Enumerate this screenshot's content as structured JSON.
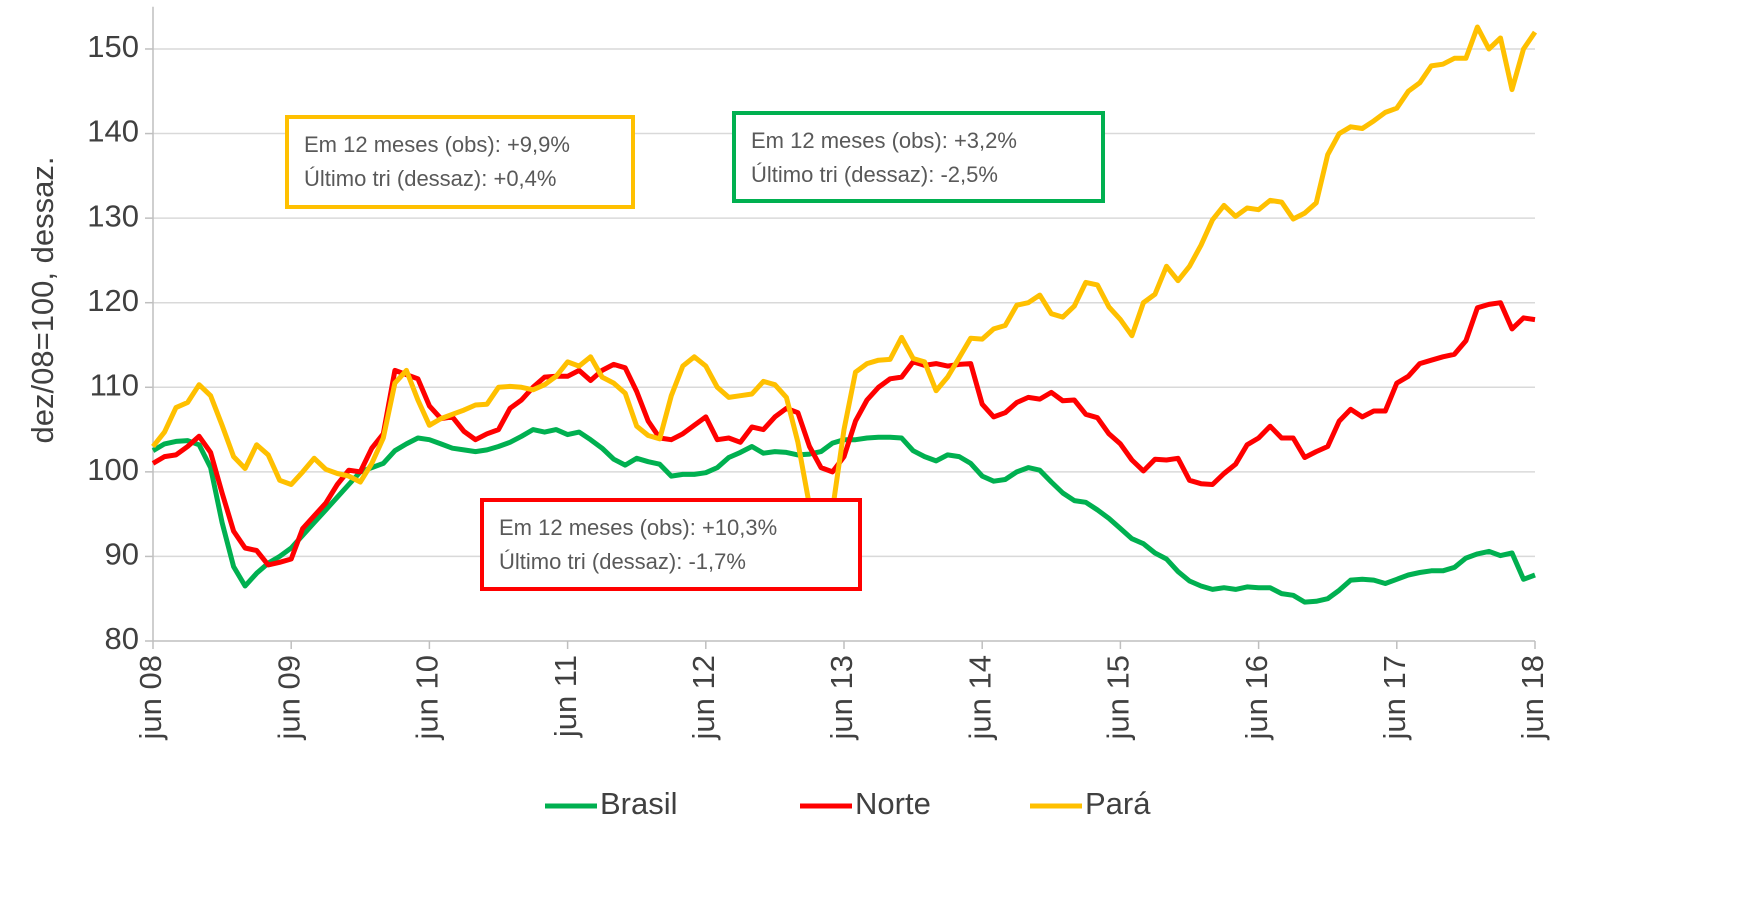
{
  "chart_data": {
    "type": "line",
    "y_label": "dez/08=100, dessaz.",
    "categories": [
      "jun 08",
      null,
      null,
      null,
      null,
      null,
      null,
      null,
      null,
      null,
      null,
      null,
      "jun 09",
      null,
      null,
      null,
      null,
      null,
      null,
      null,
      null,
      null,
      null,
      null,
      "jun 10",
      null,
      null,
      null,
      null,
      null,
      null,
      null,
      null,
      null,
      null,
      null,
      "jun 11",
      null,
      null,
      null,
      null,
      null,
      null,
      null,
      null,
      null,
      null,
      null,
      "jun 12",
      null,
      null,
      null,
      null,
      null,
      null,
      null,
      null,
      null,
      null,
      null,
      "jun 13",
      null,
      null,
      null,
      null,
      null,
      null,
      null,
      null,
      null,
      null,
      null,
      "jun 14",
      null,
      null,
      null,
      null,
      null,
      null,
      null,
      null,
      null,
      null,
      null,
      "jun 15",
      null,
      null,
      null,
      null,
      null,
      null,
      null,
      null,
      null,
      null,
      null,
      "jun 16",
      null,
      null,
      null,
      null,
      null,
      null,
      null,
      null,
      null,
      null,
      null,
      "jun 17",
      null,
      null,
      null,
      null,
      null,
      null,
      null,
      null,
      null,
      null,
      null,
      "jun 18"
    ],
    "series": [
      {
        "name": "Brasil",
        "color": "#00b050",
        "values": [
          102.5,
          103.3,
          103.6,
          103.7,
          103.2,
          100.5,
          94,
          88.8,
          86.5,
          88,
          89.2,
          90,
          91,
          92.5,
          94,
          95.5,
          97,
          98.5,
          100,
          100.5,
          101,
          102.5,
          103.3,
          104,
          103.8,
          103.3,
          102.8,
          102.6,
          102.4,
          102.6,
          103,
          103.5,
          104.2,
          105,
          104.7,
          105,
          104.4,
          104.7,
          103.8,
          102.8,
          101.5,
          100.8,
          101.6,
          101.2,
          100.9,
          99.5,
          99.7,
          99.7,
          99.9,
          100.5,
          101.7,
          102.3,
          103,
          102.2,
          102.4,
          102.3,
          102,
          102.1,
          102.4,
          103.4,
          103.8,
          103.8,
          104,
          104.1,
          104.1,
          104,
          102.5,
          101.8,
          101.3,
          102,
          101.8,
          101,
          99.5,
          98.9,
          99.1,
          100,
          100.5,
          100.2,
          98.8,
          97.5,
          96.6,
          96.4,
          95.5,
          94.5,
          93.3,
          92.1,
          91.5,
          90.4,
          89.7,
          88.2,
          87.1,
          86.5,
          86.1,
          86.3,
          86.1,
          86.4,
          86.3,
          86.3,
          85.6,
          85.4,
          84.6,
          84.7,
          85,
          86,
          87.2,
          87.3,
          87.2,
          86.8,
          87.3,
          87.8,
          88.1,
          88.3,
          88.3,
          88.7,
          89.8,
          90.3,
          90.6,
          90.1,
          90.4,
          87.3,
          87.8
        ]
      },
      {
        "name": "Norte",
        "color": "#ff0000",
        "values": [
          101,
          101.8,
          102,
          103,
          104.2,
          102.3,
          97.5,
          93,
          91,
          90.7,
          89,
          89.3,
          89.7,
          93.3,
          94.8,
          96.3,
          98.5,
          100.2,
          100,
          102.8,
          104.5,
          112,
          111.5,
          111,
          107.8,
          106.3,
          106.5,
          104.8,
          103.8,
          104.5,
          105,
          107.5,
          108.5,
          110,
          111.2,
          111.3,
          111.3,
          112,
          110.8,
          112,
          112.7,
          112.3,
          109.5,
          106,
          104,
          103.8,
          104.5,
          105.5,
          106.5,
          103.8,
          104,
          103.5,
          105.3,
          105,
          106.5,
          107.5,
          107,
          103,
          100.5,
          100,
          101.8,
          106,
          108.5,
          110,
          111,
          111.2,
          113,
          112.6,
          112.8,
          112.5,
          112.7,
          112.8,
          108,
          106.5,
          107,
          108.2,
          108.8,
          108.6,
          109.4,
          108.4,
          108.5,
          106.8,
          106.4,
          104.5,
          103.3,
          101.4,
          100.1,
          101.5,
          101.4,
          101.6,
          99,
          98.6,
          98.5,
          99.8,
          100.9,
          103.2,
          104,
          105.4,
          104,
          104,
          101.7,
          102.4,
          103,
          106,
          107.4,
          106.5,
          107.2,
          107.2,
          110.5,
          111.3,
          112.8,
          113.2,
          113.6,
          113.9,
          115.5,
          119.4,
          119.8,
          120,
          116.9,
          118.2,
          118
        ]
      },
      {
        "name": "Pará",
        "color": "#ffc000",
        "values": [
          103,
          104.7,
          107.6,
          108.2,
          110.3,
          109,
          105.5,
          101.8,
          100.4,
          103.2,
          102,
          99,
          98.5,
          100,
          101.6,
          100.3,
          99.8,
          99.5,
          98.8,
          101,
          104,
          110.5,
          112,
          108.5,
          105.5,
          106.3,
          106.8,
          107.3,
          107.9,
          108,
          110,
          110.1,
          110,
          109.7,
          110.3,
          111.3,
          113,
          112.5,
          113.6,
          111.2,
          110.5,
          109.3,
          105.4,
          104.3,
          103.9,
          109,
          112.5,
          113.6,
          112.5,
          110,
          108.8,
          109,
          109.2,
          110.7,
          110.3,
          108.8,
          103.5,
          96,
          91.2,
          95.5,
          105,
          111.8,
          112.8,
          113.2,
          113.3,
          115.9,
          113.4,
          113,
          109.6,
          111.2,
          113.5,
          115.8,
          115.7,
          116.9,
          117.3,
          119.7,
          120,
          120.9,
          118.7,
          118.3,
          119.6,
          122.4,
          122.1,
          119.5,
          118,
          116.1,
          120,
          121,
          124.3,
          122.6,
          124.3,
          126.8,
          129.8,
          131.5,
          130.2,
          131.2,
          131,
          132.1,
          131.9,
          129.9,
          130.6,
          131.8,
          137.5,
          140,
          140.8,
          140.6,
          141.5,
          142.5,
          143,
          145,
          146,
          148,
          148.2,
          148.9,
          148.9,
          152.6,
          150,
          151.3,
          145.2,
          150,
          152
        ]
      }
    ],
    "ylim": [
      80,
      155
    ],
    "yticks": [
      80,
      90,
      100,
      110,
      120,
      130,
      140,
      150
    ],
    "grid": true,
    "legend": "bottom",
    "annotations": [
      {
        "lines": [
          "Em 12 meses (obs): +9,9%",
          "Último tri (dessaz): +0,4%"
        ],
        "color": "#ffc000"
      },
      {
        "lines": [
          "Em 12 meses (obs): +3,2%",
          "Último tri (dessaz): -2,5%"
        ],
        "color": "#00b050"
      },
      {
        "lines": [
          "Em 12 meses (obs): +10,3%",
          "Último tri (dessaz): -1,7%"
        ],
        "color": "#ff0000"
      }
    ]
  }
}
